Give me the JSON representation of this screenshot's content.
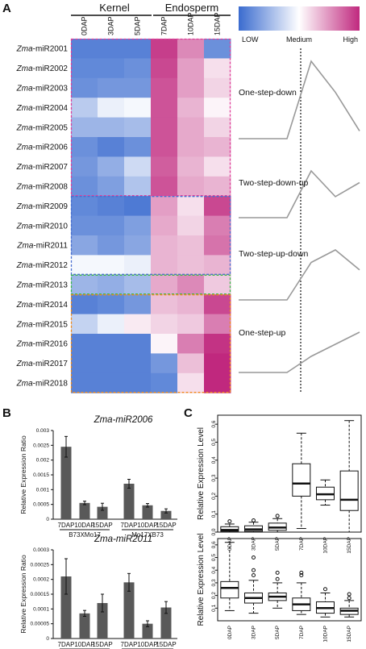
{
  "panels": {
    "a": "A",
    "b": "B",
    "c": "C"
  },
  "heatmap": {
    "group_headers": [
      "Kernel",
      "Endosperm"
    ],
    "columns": [
      "0DAP",
      "3DAP",
      "5DAP",
      "7DAP",
      "10DAP",
      "15DAP"
    ],
    "rows": [
      {
        "prefix": "Zma",
        "name": "-miR2001"
      },
      {
        "prefix": "Zma",
        "name": "-miR2002"
      },
      {
        "prefix": "Zma",
        "name": "-miR2003"
      },
      {
        "prefix": "Zma",
        "name": "-miR2004"
      },
      {
        "prefix": "Zma",
        "name": "-miR2005"
      },
      {
        "prefix": "Zma",
        "name": "-miR2006"
      },
      {
        "prefix": "Zma",
        "name": "-miR2007"
      },
      {
        "prefix": "Zma",
        "name": "-miR2008"
      },
      {
        "prefix": "Zma",
        "name": "-miR2009"
      },
      {
        "prefix": "Zma",
        "name": "-miR2010"
      },
      {
        "prefix": "Zma",
        "name": "-miR2011"
      },
      {
        "prefix": "Zma",
        "name": "-miR2012"
      },
      {
        "prefix": "Zma",
        "name": "-miR2013"
      },
      {
        "prefix": "Zma",
        "name": "-miR2014"
      },
      {
        "prefix": "Zma",
        "name": "-miR2015"
      },
      {
        "prefix": "Zma",
        "name": "-miR2016"
      },
      {
        "prefix": "Zma",
        "name": "-miR2017"
      },
      {
        "prefix": "Zma",
        "name": "-miR2018"
      }
    ],
    "values": [
      [
        -0.85,
        -0.85,
        -0.85,
        0.9,
        0.55,
        -0.75
      ],
      [
        -0.8,
        -0.8,
        -0.75,
        0.85,
        0.45,
        0.15
      ],
      [
        -0.75,
        -0.7,
        -0.7,
        0.8,
        0.45,
        0.2
      ],
      [
        -0.35,
        -0.1,
        -0.05,
        0.8,
        0.35,
        0.05
      ],
      [
        -0.5,
        -0.5,
        -0.45,
        0.8,
        0.4,
        0.2
      ],
      [
        -0.75,
        -0.85,
        -0.75,
        0.8,
        0.4,
        0.35
      ],
      [
        -0.7,
        -0.55,
        -0.25,
        0.75,
        0.35,
        0.15
      ],
      [
        -0.75,
        -0.65,
        -0.4,
        0.8,
        0.4,
        0.35
      ],
      [
        -0.8,
        -0.85,
        -0.9,
        0.45,
        0.15,
        0.85
      ],
      [
        -0.75,
        -0.75,
        -0.65,
        0.4,
        0.2,
        0.6
      ],
      [
        -0.6,
        -0.7,
        -0.6,
        0.35,
        0.3,
        0.65
      ],
      [
        -0.05,
        -0.05,
        -0.1,
        0.35,
        0.3,
        0.35
      ],
      [
        -0.5,
        -0.55,
        -0.45,
        0.4,
        0.55,
        0.25
      ],
      [
        -0.85,
        -0.8,
        -0.7,
        0.3,
        0.35,
        0.85
      ],
      [
        -0.3,
        -0.1,
        0.1,
        0.2,
        0.25,
        0.6
      ],
      [
        -0.85,
        -0.85,
        -0.85,
        0.05,
        0.6,
        0.95
      ],
      [
        -0.85,
        -0.85,
        -0.85,
        -0.7,
        0.3,
        1.0
      ],
      [
        -0.85,
        -0.85,
        -0.85,
        -0.8,
        0.15,
        1.0
      ]
    ],
    "clusters": [
      {
        "rows": [
          0,
          7
        ],
        "color": "#e0409a"
      },
      {
        "rows": [
          8,
          11
        ],
        "color": "#4a6fd0"
      },
      {
        "rows": [
          12,
          12
        ],
        "color": "#3cb84a"
      },
      {
        "rows": [
          13,
          17
        ],
        "color": "#f08a1c"
      }
    ],
    "colors": {
      "low": "#3a6bcf",
      "medium": "#ffffff",
      "high": "#c0287e"
    },
    "legend": {
      "low": "LOW",
      "medium": "Medium",
      "high": "High"
    },
    "patterns": [
      {
        "label": "One-step-down",
        "profile": [
          0,
          0,
          0,
          1,
          0.6,
          0.1
        ]
      },
      {
        "label": "Two-step-down-up",
        "profile": [
          0,
          0,
          0,
          1,
          0.45,
          0.75
        ]
      },
      {
        "label": "Two-step-up-down",
        "profile": [
          0,
          0,
          0,
          0.75,
          1,
          0.6
        ]
      },
      {
        "label": "One-step-up",
        "profile": [
          0,
          0,
          0,
          0.4,
          0.7,
          1
        ]
      }
    ]
  },
  "chart_data": [
    {
      "type": "bar",
      "title": "Zma-miR2006",
      "ylabel": "Relative Expression Ratio",
      "categories": [
        "7DAP",
        "10DAP",
        "15DAP",
        "7DAP",
        "10DAP",
        "15DAP"
      ],
      "groups": [
        "B73XMo17",
        "Mo17XB73"
      ],
      "values": [
        0.00245,
        0.00055,
        0.00042,
        0.0012,
        0.00047,
        0.00028
      ],
      "errors": [
        0.00035,
        6e-05,
        0.00012,
        0.00015,
        6e-05,
        7e-05
      ],
      "ylim": [
        0,
        0.003
      ],
      "yticks": [
        "0",
        "0.0005",
        "0.001",
        "0.0015",
        "0.002",
        "0.0025",
        "0.003"
      ]
    },
    {
      "type": "bar",
      "title": "Zma-miR2011",
      "ylabel": "Relative Expression Ratio",
      "categories": [
        "7DAP",
        "10DAP",
        "15DAP",
        "7DAP",
        "10DAP",
        "15DAP"
      ],
      "groups": [
        "B73XMo17",
        "Mo17XB73"
      ],
      "values": [
        0.00021,
        8.5e-05,
        0.00012,
        0.00019,
        5e-05,
        0.000105
      ],
      "errors": [
        6e-05,
        1e-05,
        3e-05,
        3e-05,
        1e-05,
        2e-05
      ],
      "ylim": [
        0,
        0.0003
      ],
      "yticks": [
        "0",
        "0.00005",
        "0.0001",
        "0.00015",
        "0.0002",
        "0.00025",
        "0.0003"
      ]
    },
    {
      "type": "boxplot",
      "ylabel": "Relative Expression Level",
      "categories": [
        "0DAP",
        "3DAP",
        "5DAP",
        "7DAP",
        "10DAP",
        "15DAP"
      ],
      "yticks": [
        "0.0",
        "0.1",
        "0.2",
        "0.3",
        "0.4",
        "0.5",
        "0.6"
      ],
      "ylim": [
        0,
        0.65
      ],
      "boxes": [
        {
          "min": 0,
          "q1": 0.005,
          "med": 0.012,
          "q3": 0.03,
          "max": 0.045,
          "out": [
            0.06
          ]
        },
        {
          "min": 0,
          "q1": 0.005,
          "med": 0.015,
          "q3": 0.035,
          "max": 0.055,
          "out": [
            0.065
          ]
        },
        {
          "min": 0,
          "q1": 0.01,
          "med": 0.025,
          "q3": 0.05,
          "max": 0.075,
          "out": [
            0.09
          ]
        },
        {
          "min": 0.02,
          "q1": 0.2,
          "med": 0.27,
          "q3": 0.38,
          "max": 0.55,
          "out": []
        },
        {
          "min": 0.15,
          "q1": 0.18,
          "med": 0.21,
          "q3": 0.25,
          "max": 0.29,
          "out": []
        },
        {
          "min": 0,
          "q1": 0.12,
          "med": 0.18,
          "q3": 0.34,
          "max": 0.62,
          "out": []
        }
      ]
    },
    {
      "type": "boxplot",
      "ylabel": "Relative Expression Level",
      "categories": [
        "0DAP",
        "3DAP",
        "5DAP",
        "7DAP",
        "10DAP",
        "15DAP"
      ],
      "yticks": [
        "0.1",
        "0.2",
        "0.3",
        "0.4",
        "0.5",
        "0.6"
      ],
      "ylim": [
        0,
        0.65
      ],
      "boxes": [
        {
          "min": 0.08,
          "q1": 0.18,
          "med": 0.26,
          "q3": 0.31,
          "max": 0.62,
          "out": []
        },
        {
          "min": 0.06,
          "q1": 0.14,
          "med": 0.18,
          "q3": 0.22,
          "max": 0.32,
          "out": [
            0.36,
            0.4,
            0.5
          ]
        },
        {
          "min": 0.1,
          "q1": 0.16,
          "med": 0.19,
          "q3": 0.22,
          "max": 0.3,
          "out": [
            0.33,
            0.38
          ]
        },
        {
          "min": 0.05,
          "q1": 0.08,
          "med": 0.13,
          "q3": 0.18,
          "max": 0.3,
          "out": [
            0.36,
            0.38
          ]
        },
        {
          "min": 0.03,
          "q1": 0.06,
          "med": 0.1,
          "q3": 0.15,
          "max": 0.22,
          "out": [
            0.25
          ]
        },
        {
          "min": 0.03,
          "q1": 0.05,
          "med": 0.08,
          "q3": 0.1,
          "max": 0.16,
          "out": [
            0.18,
            0.21
          ]
        }
      ]
    }
  ]
}
